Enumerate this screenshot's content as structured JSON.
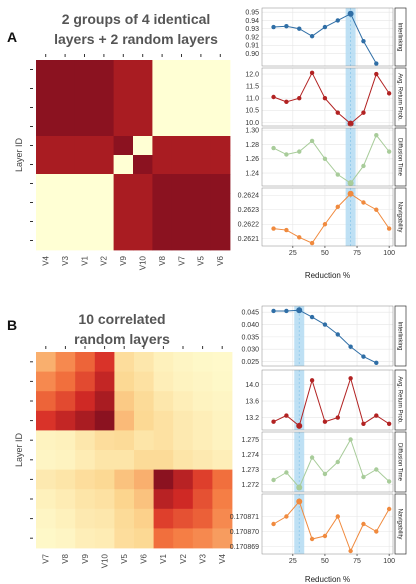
{
  "chart_data": [
    {
      "type": "heatmap",
      "panel_label": "A",
      "title_lines": [
        "2 groups of 4 identical",
        "layers + 2 random layers"
      ],
      "ylabel": "Layer ID",
      "x_tick_labels": [
        "V4",
        "V3",
        "V1",
        "V2",
        "V9",
        "V10",
        "V8",
        "V7",
        "V5",
        "V6"
      ],
      "values": [
        [
          1.0,
          1.0,
          1.0,
          1.0,
          0.92,
          0.92,
          0.0,
          0.0,
          0.0,
          0.0
        ],
        [
          1.0,
          1.0,
          1.0,
          1.0,
          0.92,
          0.92,
          0.0,
          0.0,
          0.0,
          0.0
        ],
        [
          1.0,
          1.0,
          1.0,
          1.0,
          0.92,
          0.92,
          0.0,
          0.0,
          0.0,
          0.0
        ],
        [
          1.0,
          1.0,
          1.0,
          1.0,
          0.92,
          0.92,
          0.0,
          0.0,
          0.0,
          0.0
        ],
        [
          0.92,
          0.92,
          0.92,
          0.92,
          1.0,
          0.0,
          0.92,
          0.92,
          0.92,
          0.92
        ],
        [
          0.92,
          0.92,
          0.92,
          0.92,
          0.0,
          1.0,
          0.92,
          0.92,
          0.92,
          0.92
        ],
        [
          0.0,
          0.0,
          0.0,
          0.0,
          0.92,
          0.92,
          1.0,
          1.0,
          1.0,
          1.0
        ],
        [
          0.0,
          0.0,
          0.0,
          0.0,
          0.92,
          0.92,
          1.0,
          1.0,
          1.0,
          1.0
        ],
        [
          0.0,
          0.0,
          0.0,
          0.0,
          0.92,
          0.92,
          1.0,
          1.0,
          1.0,
          1.0
        ],
        [
          0.0,
          0.0,
          0.0,
          0.0,
          0.92,
          0.92,
          1.0,
          1.0,
          1.0,
          1.0
        ]
      ],
      "color_low": "#ffffd4",
      "color_high": "#8b1220"
    },
    {
      "type": "heatmap",
      "panel_label": "B",
      "title_lines": [
        "10 correlated",
        "random layers"
      ],
      "ylabel": "Layer ID",
      "x_tick_labels": [
        "V7",
        "V8",
        "V9",
        "V10",
        "V5",
        "V6",
        "V1",
        "V2",
        "V3",
        "V4"
      ],
      "values": [
        [
          0.45,
          0.55,
          0.65,
          0.78,
          0.28,
          0.2,
          0.12,
          0.08,
          0.06,
          0.05
        ],
        [
          0.55,
          0.62,
          0.72,
          0.85,
          0.32,
          0.25,
          0.14,
          0.1,
          0.08,
          0.06
        ],
        [
          0.65,
          0.72,
          0.82,
          0.92,
          0.38,
          0.3,
          0.2,
          0.14,
          0.1,
          0.08
        ],
        [
          0.78,
          0.85,
          0.92,
          1.0,
          0.42,
          0.32,
          0.25,
          0.18,
          0.14,
          0.1
        ],
        [
          0.1,
          0.12,
          0.2,
          0.28,
          0.3,
          0.22,
          0.25,
          0.18,
          0.14,
          0.1
        ],
        [
          0.08,
          0.1,
          0.16,
          0.22,
          0.22,
          0.3,
          0.3,
          0.22,
          0.18,
          0.14
        ],
        [
          0.18,
          0.22,
          0.28,
          0.32,
          0.4,
          0.45,
          1.0,
          0.88,
          0.75,
          0.62
        ],
        [
          0.12,
          0.16,
          0.22,
          0.25,
          0.35,
          0.4,
          0.88,
          0.82,
          0.7,
          0.58
        ],
        [
          0.08,
          0.12,
          0.18,
          0.2,
          0.3,
          0.36,
          0.75,
          0.7,
          0.66,
          0.55
        ],
        [
          0.06,
          0.08,
          0.14,
          0.16,
          0.28,
          0.32,
          0.62,
          0.58,
          0.55,
          0.5
        ]
      ],
      "color_low": "#ffffd4",
      "color_high": "#8b1220"
    },
    {
      "type": "line",
      "panel_label": "A",
      "xlabel": "Reduction %",
      "x_ticks": [
        "25",
        "50",
        "75",
        "100"
      ],
      "x_range": [
        1,
        103
      ],
      "highlight_x": 70,
      "highlight_color": "#b3daf2",
      "series": [
        {
          "name": "Interlinking",
          "color": "#2f6ea6",
          "ylim": [
            0.885,
            0.955
          ],
          "y_ticks": [
            "0.95",
            "0.94",
            "0.93",
            "0.92",
            "0.91",
            "0.90"
          ],
          "x": [
            10,
            20,
            30,
            40,
            50,
            60,
            70,
            80,
            90
          ],
          "y": [
            0.932,
            0.933,
            0.93,
            0.921,
            0.932,
            0.94,
            0.948,
            0.915,
            0.888
          ]
        },
        {
          "name": "Avg. Return Prob.",
          "color": "#b22222",
          "ylim": [
            9.85,
            12.25
          ],
          "y_ticks": [
            "12.0",
            "11.5",
            "11.0",
            "10.5",
            "10.0"
          ],
          "x": [
            10,
            20,
            30,
            40,
            50,
            60,
            70,
            80,
            90,
            100
          ],
          "y": [
            11.05,
            10.85,
            11.0,
            12.05,
            11.0,
            10.4,
            9.95,
            10.4,
            12.0,
            11.2
          ]
        },
        {
          "name": "Diffusion Time",
          "color": "#a8cc9a",
          "ylim": [
            1.222,
            1.303
          ],
          "y_ticks": [
            "1.30",
            "1.28",
            "1.26",
            "1.24"
          ],
          "x": [
            10,
            20,
            30,
            40,
            50,
            60,
            70,
            80,
            90,
            100
          ],
          "y": [
            1.275,
            1.266,
            1.27,
            1.285,
            1.26,
            1.238,
            1.226,
            1.25,
            1.293,
            1.27
          ]
        },
        {
          "name": "Navigability",
          "color": "#f08a3e",
          "ylim": [
            0.26205,
            0.26245
          ],
          "y_ticks": [
            "0.2624",
            "0.2623",
            "0.2622",
            "0.2621"
          ],
          "x": [
            10,
            20,
            30,
            40,
            50,
            60,
            70,
            80,
            90,
            100
          ],
          "y": [
            0.26217,
            0.26216,
            0.26211,
            0.26207,
            0.2622,
            0.26232,
            0.26241,
            0.26235,
            0.2623,
            0.26217
          ]
        }
      ]
    },
    {
      "type": "line",
      "panel_label": "B",
      "xlabel": "Reduction %",
      "x_ticks": [
        "25",
        "50",
        "75",
        "100"
      ],
      "x_range": [
        1,
        103
      ],
      "highlight_x": 30,
      "highlight_color": "#b3daf2",
      "series": [
        {
          "name": "Interlinking",
          "color": "#2f6ea6",
          "ylim": [
            0.0232,
            0.0475
          ],
          "y_ticks": [
            "0.045",
            "0.040",
            "0.035",
            "0.030",
            "0.025"
          ],
          "x": [
            10,
            20,
            30,
            40,
            50,
            60,
            70,
            80,
            90
          ],
          "y": [
            0.0455,
            0.0455,
            0.0458,
            0.043,
            0.04,
            0.036,
            0.031,
            0.027,
            0.0245
          ]
        },
        {
          "name": "Avg. Return Prob.",
          "color": "#b22222",
          "ylim": [
            12.9,
            14.35
          ],
          "y_ticks": [
            "14.0",
            "13.6",
            "13.2"
          ],
          "x": [
            10,
            20,
            30,
            40,
            50,
            60,
            70,
            80,
            90,
            100
          ],
          "y": [
            13.1,
            13.25,
            13.0,
            14.1,
            13.1,
            13.2,
            14.15,
            13.05,
            13.25,
            13.05
          ]
        },
        {
          "name": "Diffusion Time",
          "color": "#a8cc9a",
          "ylim": [
            1.2715,
            1.2755
          ],
          "y_ticks": [
            "1.275",
            "1.274",
            "1.273",
            "1.272"
          ],
          "x": [
            10,
            20,
            30,
            40,
            50,
            60,
            70,
            80,
            90,
            100
          ],
          "y": [
            1.2723,
            1.2728,
            1.2718,
            1.2738,
            1.2727,
            1.2735,
            1.275,
            1.2725,
            1.273,
            1.2722
          ]
        },
        {
          "name": "Navigability",
          "color": "#f08a3e",
          "ylim": [
            0.1708685,
            0.1708725
          ],
          "y_ticks": [
            "0.170871",
            "0.170870",
            "0.170869"
          ],
          "x": [
            10,
            20,
            30,
            40,
            50,
            60,
            70,
            80,
            90,
            100
          ],
          "y": [
            0.1708705,
            0.170871,
            0.170872,
            0.1708695,
            0.1708697,
            0.170871,
            0.1708687,
            0.1708705,
            0.17087,
            0.1708715
          ]
        }
      ]
    }
  ]
}
